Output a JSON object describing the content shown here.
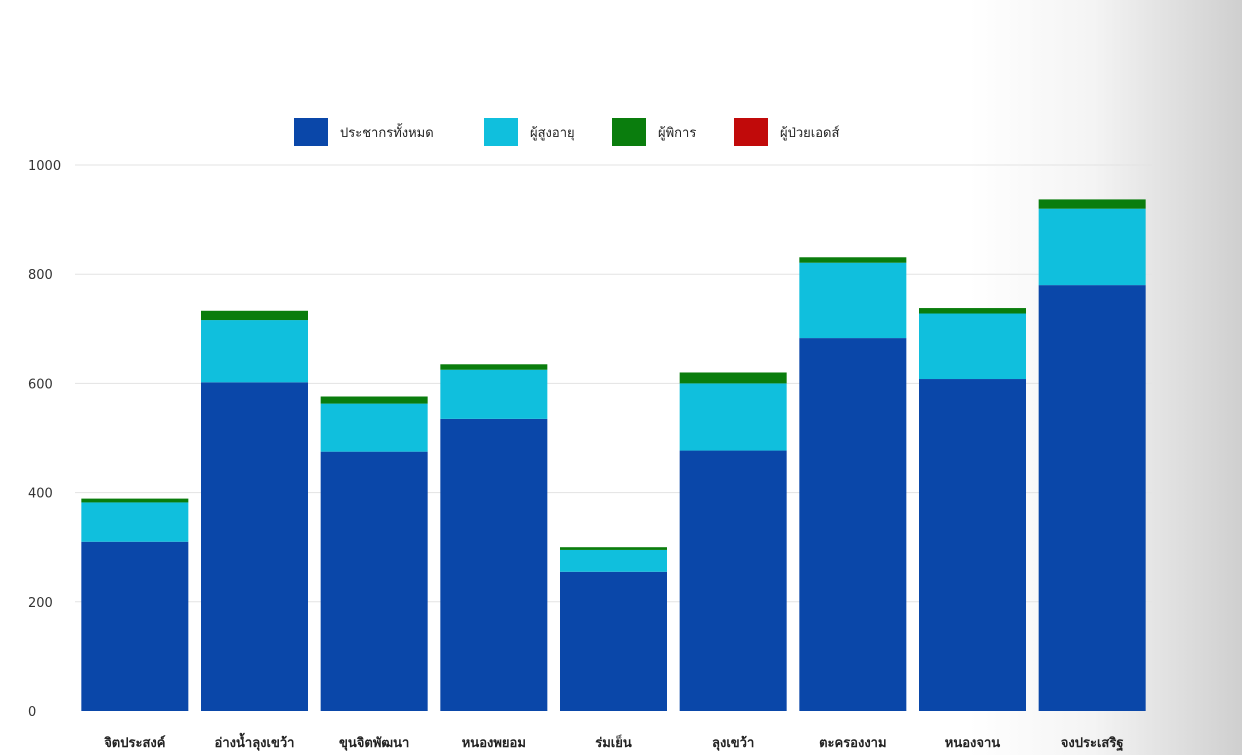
{
  "chart_data": {
    "type": "bar",
    "stacked": true,
    "categories": [
      "จิตประสงค์",
      "อ่างน้ำลุงเขว้า",
      "ขุนจิตพัฒนา",
      "หนองพยอม",
      "ร่มเย็น",
      "ลุงเขว้า",
      "ตะครองงาม",
      "หนองจาน",
      "จงประเสริฐ"
    ],
    "series": [
      {
        "name": "ประชากรทั้งหมด",
        "color": "#0a47a9",
        "values": [
          310,
          602,
          475,
          535,
          255,
          477,
          683,
          608,
          780
        ]
      },
      {
        "name": "ผู้สูงอายุ",
        "color": "#10bfdd",
        "values": [
          72,
          114,
          88,
          90,
          40,
          123,
          138,
          120,
          140
        ]
      },
      {
        "name": "ผู้พิการ",
        "color": "#0a7d0d",
        "values": [
          7,
          17,
          13,
          10,
          5,
          20,
          10,
          10,
          17
        ]
      },
      {
        "name": "ผู้ป่วยเอดส์",
        "color": "#c10a0a",
        "values": [
          0,
          0,
          0,
          0,
          0,
          0,
          0,
          0,
          0
        ]
      }
    ],
    "ylim": [
      0,
      1000
    ],
    "yticks": [
      0,
      200,
      400,
      600,
      800,
      1000
    ],
    "grid": true,
    "legend_position": "top"
  }
}
